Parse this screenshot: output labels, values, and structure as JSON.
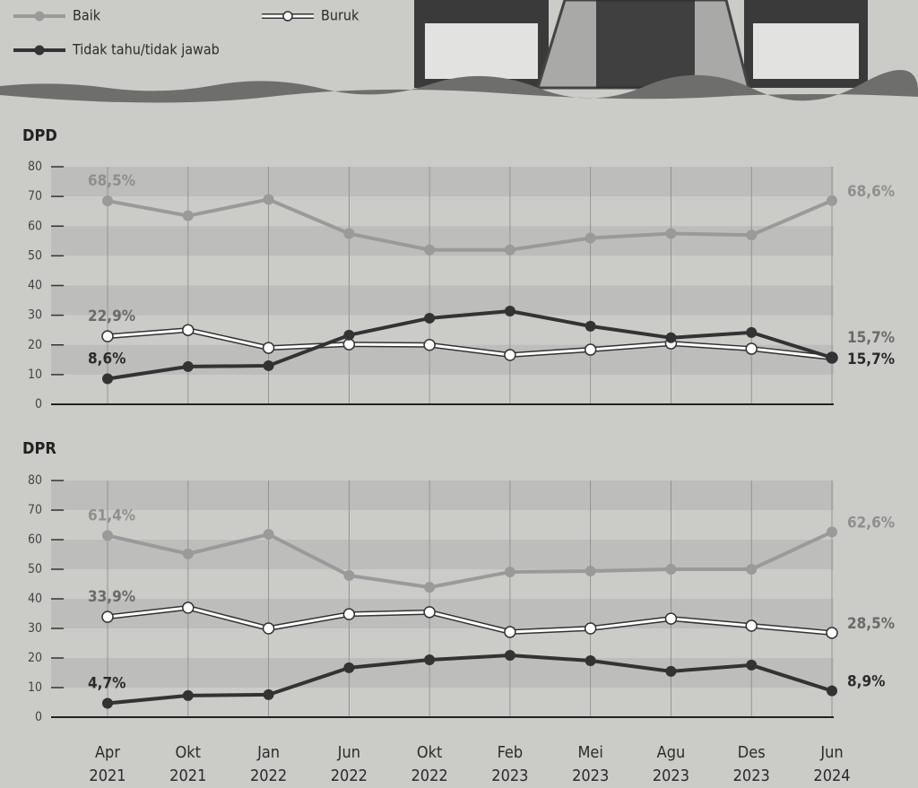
{
  "chart_data": [
    {
      "type": "line",
      "title": "DPD",
      "ylim": [
        0,
        80
      ],
      "yticks": [
        0,
        10,
        20,
        30,
        40,
        50,
        60,
        70,
        80
      ],
      "series": [
        {
          "name": "Baik",
          "color": "#9a9a9a",
          "values": [
            68.5,
            63.5,
            69,
            57.5,
            52,
            52,
            56,
            57.5,
            57,
            68.6
          ],
          "value_labels": [
            "68,5%",
            null,
            null,
            null,
            null,
            null,
            null,
            null,
            null,
            "68,6%"
          ]
        },
        {
          "name": "Buruk",
          "color": "#ffffff",
          "values": [
            22.9,
            25,
            19,
            20.2,
            20,
            16.6,
            18.4,
            20.5,
            18.7,
            15.7
          ],
          "value_labels": [
            "22,9%",
            null,
            null,
            null,
            null,
            null,
            null,
            null,
            null,
            "15,7%"
          ]
        },
        {
          "name": "Tidak tahu/tidak jawab",
          "color": "#333333",
          "values": [
            8.6,
            12.7,
            13,
            23.3,
            29,
            31.4,
            26.3,
            22.4,
            24.2,
            15.7
          ],
          "value_labels": [
            "8,6%",
            null,
            null,
            null,
            null,
            null,
            null,
            null,
            null,
            "15,7%"
          ]
        }
      ]
    },
    {
      "type": "line",
      "title": "DPR",
      "categories": [
        [
          "Apr",
          "2021"
        ],
        [
          "Okt",
          "2021"
        ],
        [
          "Jan",
          "2022"
        ],
        [
          "Jun",
          "2022"
        ],
        [
          "Okt",
          "2022"
        ],
        [
          "Feb",
          "2023"
        ],
        [
          "Mei",
          "2023"
        ],
        [
          "Agu",
          "2023"
        ],
        [
          "Des",
          "2023"
        ],
        [
          "Jun",
          "2024"
        ]
      ],
      "ylim": [
        0,
        80
      ],
      "yticks": [
        0,
        10,
        20,
        30,
        40,
        50,
        60,
        70,
        80
      ],
      "series": [
        {
          "color": "#9a9a9a",
          "values": [
            61.4,
            55.2,
            61.8,
            47.9,
            43.9,
            49.1,
            49.4,
            50,
            50,
            62.6
          ],
          "value_labels": [
            "61,4%",
            null,
            null,
            null,
            null,
            null,
            null,
            null,
            null,
            "62,6%"
          ]
        },
        {
          "color": "#ffffff",
          "values": [
            33.9,
            37,
            30,
            34.8,
            35.5,
            28.8,
            30,
            33.3,
            30.9,
            28.5
          ],
          "value_labels": [
            "33,9%",
            null,
            null,
            null,
            null,
            null,
            null,
            null,
            null,
            "28,5%"
          ]
        },
        {
          "color": "#333333",
          "values": [
            4.7,
            7.3,
            7.6,
            16.7,
            19.4,
            20.9,
            19.1,
            15.5,
            17.6,
            8.9
          ],
          "value_labels": [
            "4,7%",
            null,
            null,
            null,
            null,
            null,
            null,
            null,
            null,
            "8,9%"
          ]
        }
      ]
    }
  ]
}
